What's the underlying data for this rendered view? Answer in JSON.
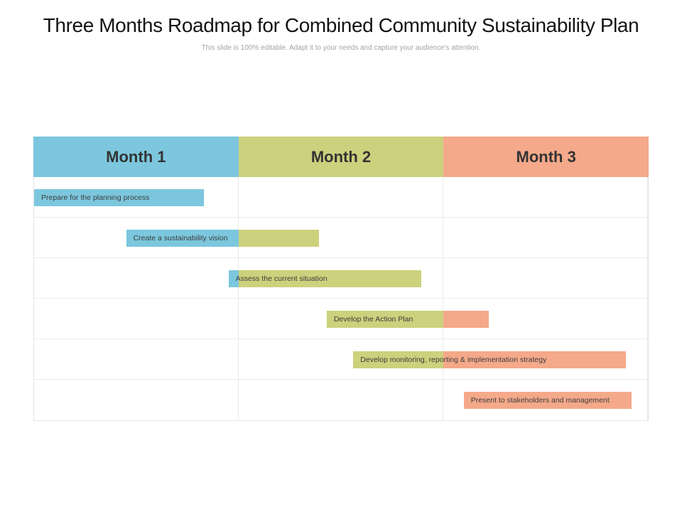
{
  "title": "Three Months Roadmap for Combined Community Sustainability Plan",
  "subtitle": "This slide is 100% editable. Adapt it to your needs and capture your audience's attention.",
  "style": {
    "grid_border": "#EBEBEB",
    "outer_border": "#E4E4E4",
    "title_color": "#141414",
    "subtitle_color": "#A3A3A3",
    "header_text_color": "#333333",
    "bar_text_color": "#3C3C3C",
    "background": "#FFFFFF"
  },
  "chart_data": {
    "type": "bar",
    "subtype": "gantt-roadmap",
    "title": "Three Months Roadmap for Combined Community Sustainability Plan",
    "x_unit": "month",
    "x_range": [
      0,
      3
    ],
    "grid": true,
    "months": [
      {
        "label": "Month 1",
        "color": "#7CC7DE"
      },
      {
        "label": "Month 2",
        "color": "#CBD17C"
      },
      {
        "label": "Month 3",
        "color": "#F4A98A"
      }
    ],
    "tasks": [
      {
        "label": "Prepare for the planning process",
        "start": 0.0,
        "end": 0.83
      },
      {
        "label": "Create a sustainability vision",
        "start": 0.45,
        "end": 1.39
      },
      {
        "label": "Assess the current situation",
        "start": 0.95,
        "end": 1.89
      },
      {
        "label": "Develop the Action Plan",
        "start": 1.43,
        "end": 2.22
      },
      {
        "label": "Develop monitoring, reporting & implementation strategy",
        "start": 1.56,
        "end": 2.89
      },
      {
        "label": "Present to stakeholders and management",
        "start": 2.1,
        "end": 2.92
      }
    ]
  }
}
